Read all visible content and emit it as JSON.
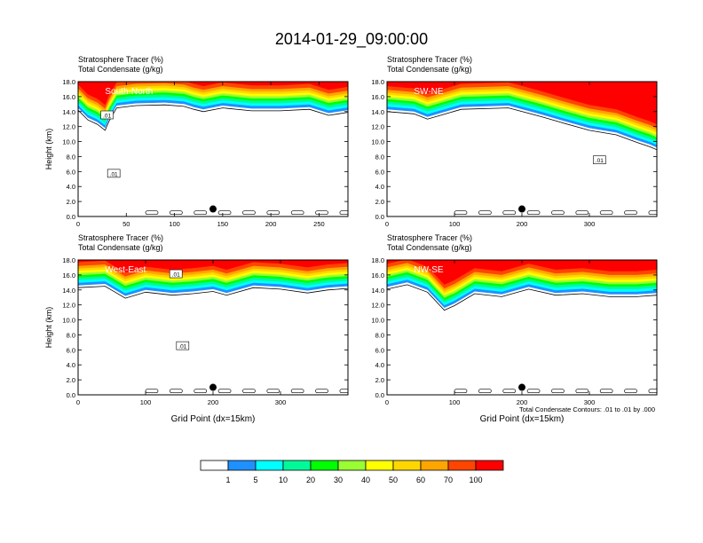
{
  "figure": {
    "title": "2014-01-29_09:00:00",
    "contour_note": "Total Condensate Contours: .01 to .01 by .000"
  },
  "colors": {
    "levels": [
      "#ffffff",
      "#1e90ff",
      "#00ffff",
      "#00fa9a",
      "#00ff00",
      "#9aff32",
      "#ffff00",
      "#ffd700",
      "#ffa500",
      "#ff4500",
      "#ff0000"
    ],
    "contour": "#000000"
  },
  "colorbar": {
    "labels": [
      "1",
      "5",
      "10",
      "20",
      "30",
      "40",
      "50",
      "60",
      "70",
      "100"
    ]
  },
  "chart_data": [
    {
      "type": "heatmap",
      "panel": "South-North",
      "title_line1": "Stratosphere Tracer   (%)",
      "title_line2": "Total Condensate   (g/kg)",
      "ylabel": "Height (km)",
      "xlabel": "",
      "xlim": [
        0,
        280
      ],
      "ylim": [
        0,
        18
      ],
      "xticks": [
        "0",
        "50",
        "100",
        "150",
        "200",
        "250"
      ],
      "xtick_values": [
        0,
        50,
        100,
        150,
        200,
        250
      ],
      "yticks": [
        "0.0",
        "2.0",
        "4.0",
        "6.0",
        "8.0",
        "10.0",
        "12.0",
        "14.0",
        "16.0",
        "18.0"
      ],
      "contour_labels": [
        {
          "text": ".01",
          "x": 30,
          "y": 13.5
        },
        {
          "text": ".01",
          "x": 37,
          "y": 5.7
        }
      ],
      "tracer_base_km": [
        [
          0,
          14.5
        ],
        [
          10,
          13.2
        ],
        [
          20,
          12.6
        ],
        [
          28,
          11.8
        ],
        [
          32,
          13
        ],
        [
          40,
          14.8
        ],
        [
          60,
          15.1
        ],
        [
          90,
          15.2
        ],
        [
          110,
          15
        ],
        [
          120,
          14.6
        ],
        [
          130,
          14.3
        ],
        [
          150,
          14.8
        ],
        [
          180,
          14.4
        ],
        [
          210,
          14.4
        ],
        [
          240,
          14.6
        ],
        [
          260,
          13.8
        ],
        [
          280,
          14.2
        ]
      ],
      "marker": {
        "x": 140,
        "y": 1.0
      }
    },
    {
      "type": "heatmap",
      "panel": "SW-NE",
      "title_line1": "Stratosphere Tracer   (%)",
      "title_line2": "Total Condensate   (g/kg)",
      "ylabel": "",
      "xlabel": "",
      "xlim": [
        0,
        400
      ],
      "ylim": [
        0,
        18
      ],
      "xticks": [
        "0",
        "100",
        "200",
        "300"
      ],
      "xtick_values": [
        0,
        100,
        200,
        300
      ],
      "yticks": [
        "0.0",
        "2.0",
        "4.0",
        "6.0",
        "8.0",
        "10.0",
        "12.0",
        "14.0",
        "16.0",
        "18.0"
      ],
      "contour_labels": [
        {
          "text": ".01",
          "x": 315,
          "y": 7.5
        }
      ],
      "tracer_base_km": [
        [
          0,
          14.3
        ],
        [
          40,
          14
        ],
        [
          60,
          13.3
        ],
        [
          110,
          14.6
        ],
        [
          180,
          14.8
        ],
        [
          230,
          13.6
        ],
        [
          260,
          12.8
        ],
        [
          300,
          11.8
        ],
        [
          340,
          11.2
        ],
        [
          370,
          10.2
        ],
        [
          390,
          9.6
        ],
        [
          400,
          9.2
        ]
      ],
      "marker": {
        "x": 200,
        "y": 1.0
      }
    },
    {
      "type": "heatmap",
      "panel": "West-East",
      "title_line1": "Stratosphere Tracer   (%)",
      "title_line2": "Total Condensate   (g/kg)",
      "ylabel": "Height (km)",
      "xlabel": "Grid Point (dx=15km)",
      "xlim": [
        0,
        400
      ],
      "ylim": [
        0,
        18
      ],
      "xticks": [
        "0",
        "100",
        "200",
        "300"
      ],
      "xtick_values": [
        0,
        100,
        200,
        300
      ],
      "yticks": [
        "0.0",
        "2.0",
        "4.0",
        "6.0",
        "8.0",
        "10.0",
        "12.0",
        "14.0",
        "16.0",
        "18.0"
      ],
      "contour_labels": [
        {
          "text": ".01",
          "x": 145,
          "y": 16.1
        },
        {
          "text": ".01",
          "x": 155,
          "y": 6.5
        }
      ],
      "tracer_base_km": [
        [
          0,
          14.6
        ],
        [
          40,
          14.8
        ],
        [
          70,
          13.2
        ],
        [
          100,
          14
        ],
        [
          140,
          13.6
        ],
        [
          170,
          13.8
        ],
        [
          200,
          14.1
        ],
        [
          220,
          13.6
        ],
        [
          260,
          14.6
        ],
        [
          300,
          14.4
        ],
        [
          340,
          13.9
        ],
        [
          370,
          14.3
        ],
        [
          400,
          14.5
        ]
      ],
      "marker": {
        "x": 200,
        "y": 1.0
      }
    },
    {
      "type": "heatmap",
      "panel": "NW-SE",
      "title_line1": "Stratosphere Tracer   (%)",
      "title_line2": "Total Condensate   (g/kg)",
      "ylabel": "",
      "xlabel": "Grid Point (dx=15km)",
      "xlim": [
        0,
        400
      ],
      "ylim": [
        0,
        18
      ],
      "xticks": [
        "0",
        "100",
        "200",
        "300"
      ],
      "xtick_values": [
        0,
        100,
        200,
        300
      ],
      "yticks": [
        "0.0",
        "2.0",
        "4.0",
        "6.0",
        "8.0",
        "10.0",
        "12.0",
        "14.0",
        "16.0",
        "18.0"
      ],
      "contour_labels": [],
      "tracer_base_km": [
        [
          0,
          14.4
        ],
        [
          30,
          15
        ],
        [
          60,
          14
        ],
        [
          85,
          11.6
        ],
        [
          100,
          12.2
        ],
        [
          130,
          13.8
        ],
        [
          170,
          13.4
        ],
        [
          210,
          14.4
        ],
        [
          250,
          13.6
        ],
        [
          290,
          13.8
        ],
        [
          330,
          13.4
        ],
        [
          370,
          13.4
        ],
        [
          400,
          13.6
        ]
      ],
      "marker": {
        "x": 200,
        "y": 1.0
      }
    }
  ]
}
